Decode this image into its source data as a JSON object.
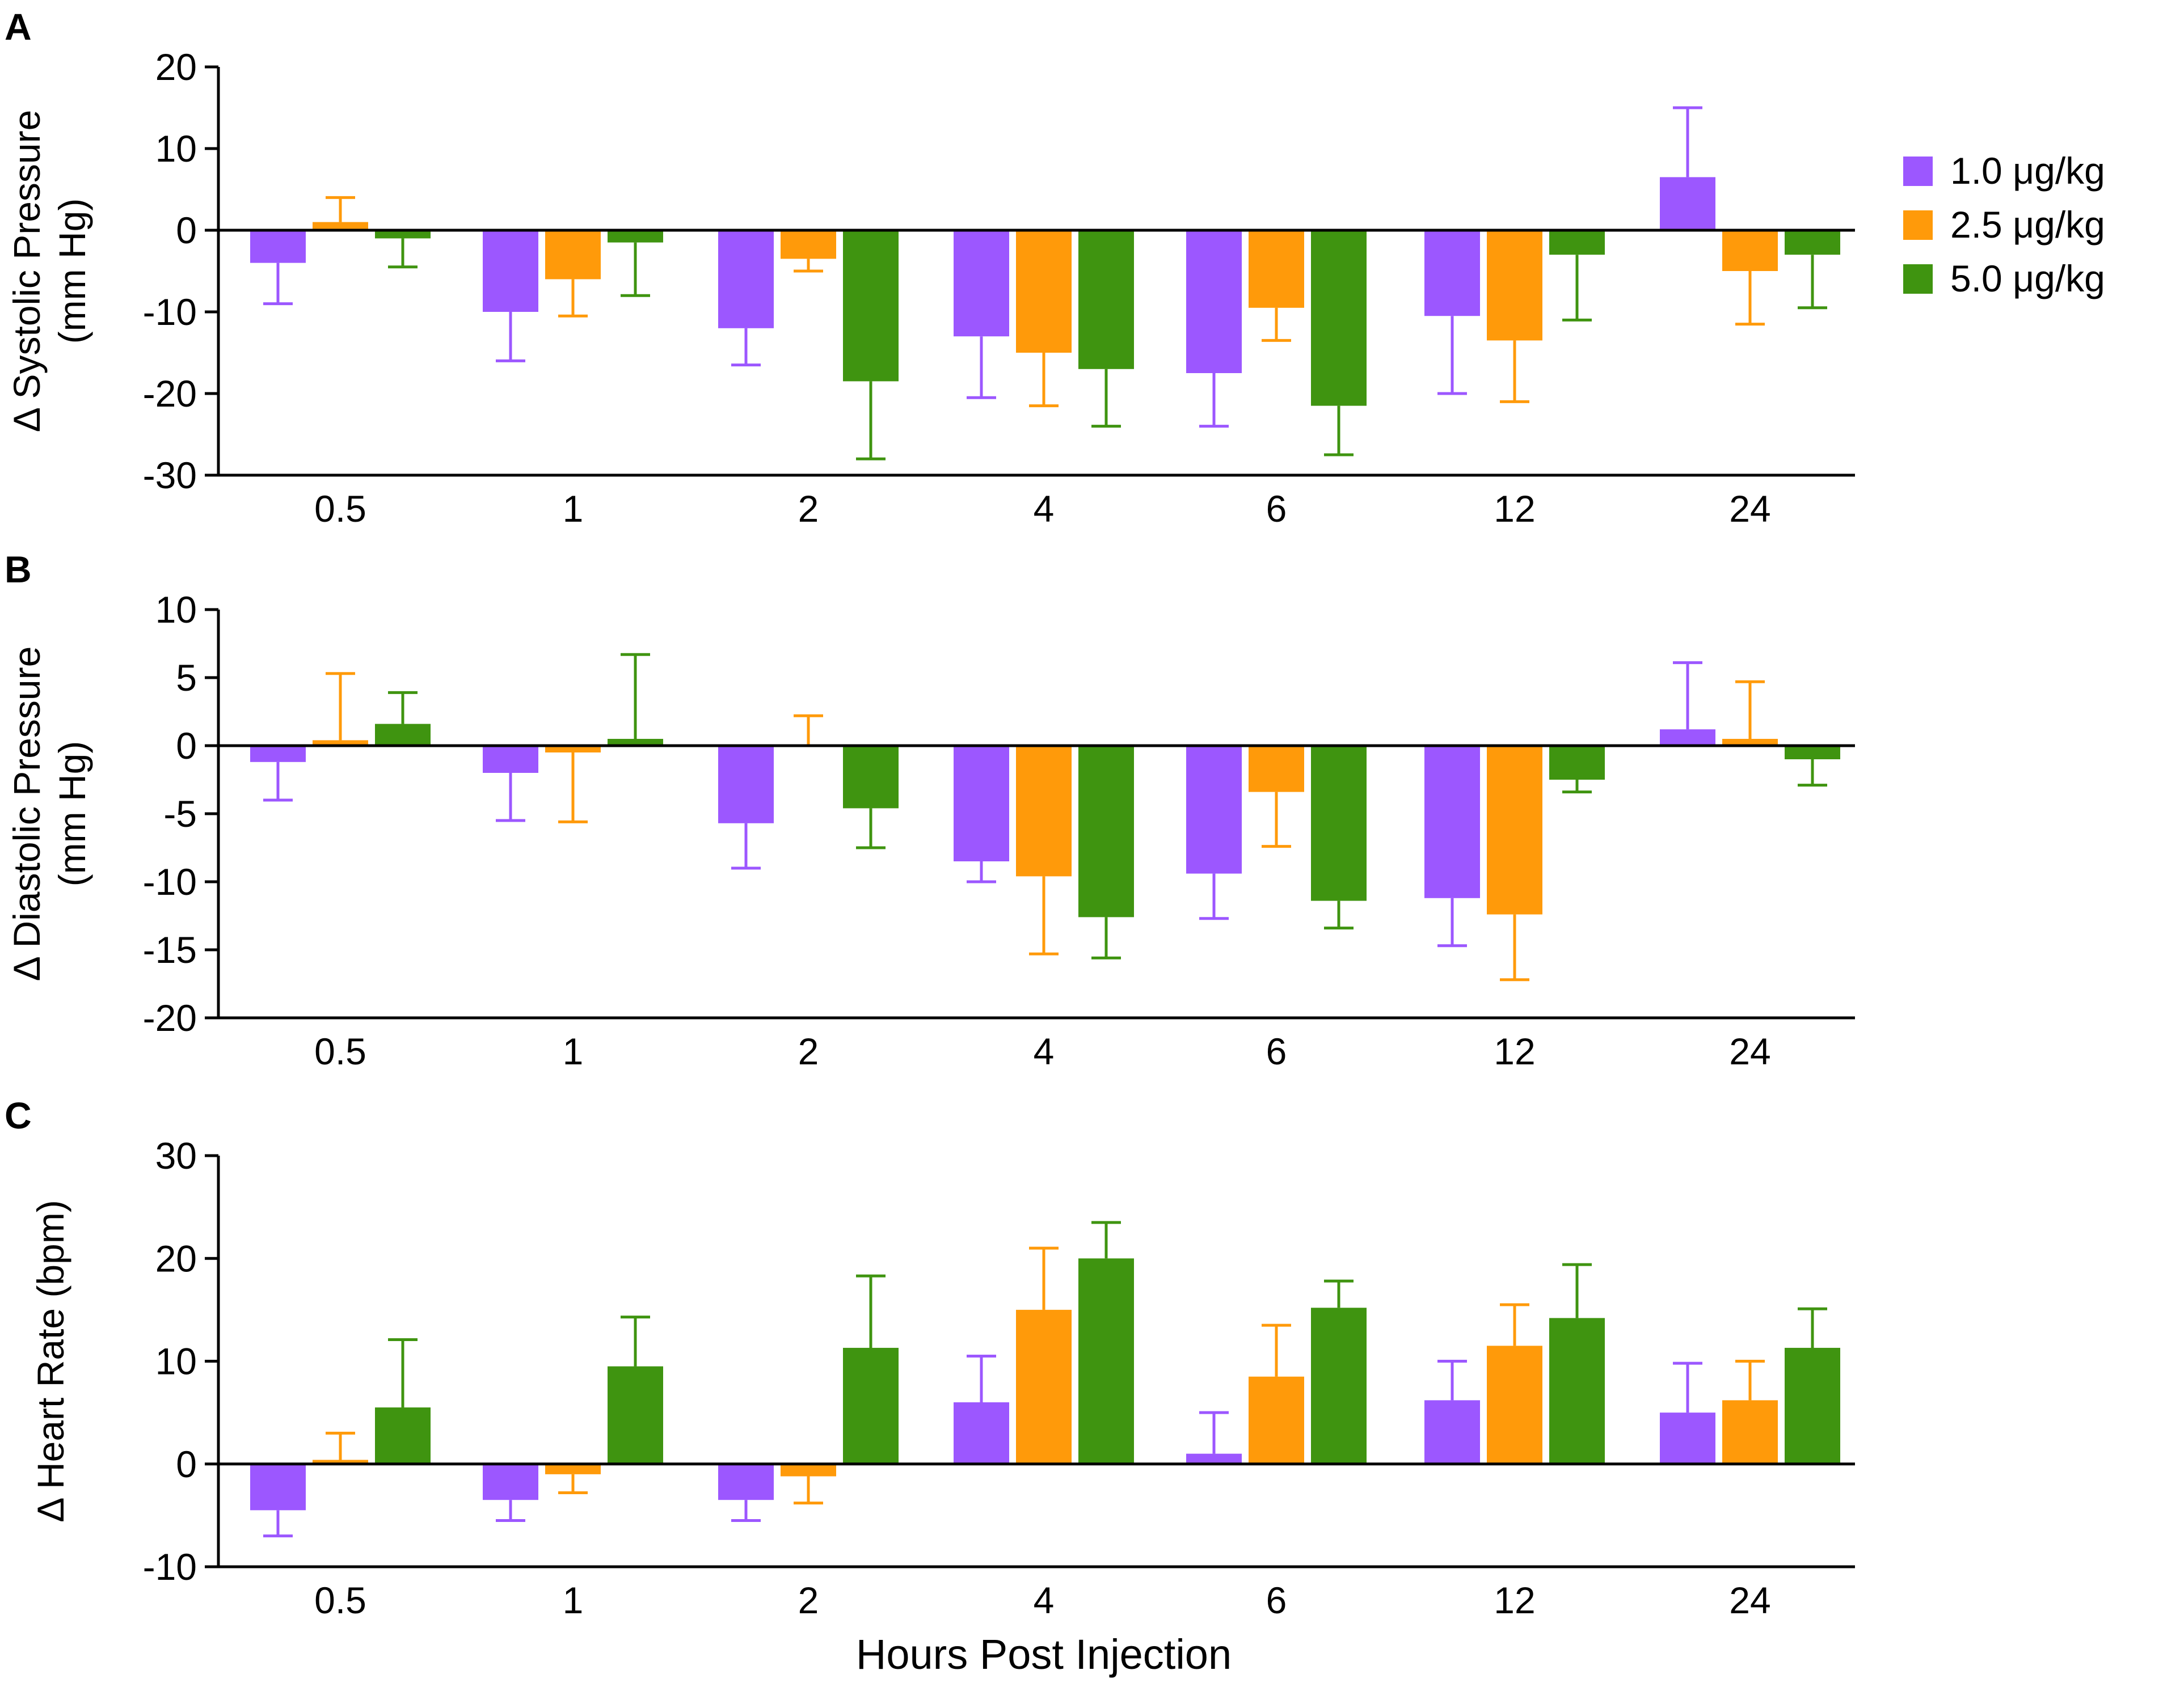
{
  "legend": {
    "items": [
      {
        "label": "1.0 μg/kg",
        "color": "#9c57ff"
      },
      {
        "label": "2.5 μg/kg",
        "color": "#ff9a0a"
      },
      {
        "label": "5.0 μg/kg",
        "color": "#3f9410"
      }
    ]
  },
  "xlabel": "Hours Post Injection",
  "chart_data": [
    {
      "panel": "A",
      "type": "bar",
      "ylabel": [
        "Δ Systolic Pressure",
        "(mm Hg)"
      ],
      "categories": [
        "0.5",
        "1",
        "2",
        "4",
        "6",
        "12",
        "24"
      ],
      "ylim": [
        -30,
        20
      ],
      "yticks": [
        20,
        10,
        0,
        -10,
        -20,
        -30
      ],
      "series": [
        {
          "name": "1.0 μg/kg",
          "values": [
            -4,
            -10,
            -12,
            -13,
            -17.5,
            -10.5,
            6.5
          ],
          "errors": [
            5,
            6,
            4.5,
            7.5,
            6.5,
            9.5,
            8.5
          ]
        },
        {
          "name": "2.5 μg/kg",
          "values": [
            1,
            -6,
            -3.5,
            -15,
            -9.5,
            -13.5,
            -5
          ],
          "errors": [
            3,
            4.5,
            1.5,
            6.5,
            4,
            7.5,
            6.5
          ]
        },
        {
          "name": "5.0 μg/kg",
          "values": [
            -1,
            -1.5,
            -18.5,
            -17,
            -21.5,
            -3,
            -3
          ],
          "errors": [
            3.5,
            6.5,
            9.5,
            7,
            6,
            8,
            6.5
          ]
        }
      ]
    },
    {
      "panel": "B",
      "type": "bar",
      "ylabel": [
        "Δ Diastolic Pressure",
        "(mm Hg)"
      ],
      "categories": [
        "0.5",
        "1",
        "2",
        "4",
        "6",
        "12",
        "24"
      ],
      "ylim": [
        -20,
        10
      ],
      "yticks": [
        10,
        5,
        0,
        -5,
        -10,
        -15,
        -20
      ],
      "series": [
        {
          "name": "1.0 μg/kg",
          "values": [
            -1.2,
            -2,
            -5.7,
            -8.5,
            -9.4,
            -11.2,
            1.2
          ],
          "errors": [
            2.8,
            3.5,
            3.3,
            1.5,
            3.3,
            3.5,
            4.9
          ]
        },
        {
          "name": "2.5 μg/kg",
          "values": [
            0.4,
            -0.5,
            0,
            -9.6,
            -3.4,
            -12.4,
            0.5
          ],
          "errors": [
            4.9,
            5.1,
            2.2,
            5.7,
            4,
            4.8,
            4.2
          ]
        },
        {
          "name": "5.0 μg/kg",
          "values": [
            1.6,
            0.5,
            -4.6,
            -12.6,
            -11.4,
            -2.5,
            -1
          ],
          "errors": [
            2.3,
            6.2,
            2.9,
            3,
            2,
            0.9,
            1.9
          ]
        }
      ]
    },
    {
      "panel": "C",
      "type": "bar",
      "ylabel": [
        "Δ Heart Rate (bpm)"
      ],
      "categories": [
        "0.5",
        "1",
        "2",
        "4",
        "6",
        "12",
        "24"
      ],
      "ylim": [
        -10,
        30
      ],
      "yticks": [
        30,
        20,
        10,
        0,
        -10
      ],
      "series": [
        {
          "name": "1.0 μg/kg",
          "values": [
            -4.5,
            -3.5,
            -3.5,
            6,
            1,
            6.2,
            5
          ],
          "errors": [
            2.5,
            2,
            2,
            4.5,
            4,
            3.8,
            4.8
          ]
        },
        {
          "name": "2.5 μg/kg",
          "values": [
            0.4,
            -1,
            -1.2,
            15,
            8.5,
            11.5,
            6.2
          ],
          "errors": [
            2.6,
            1.8,
            2.6,
            6,
            5,
            4,
            3.8
          ]
        },
        {
          "name": "5.0 μg/kg",
          "values": [
            5.5,
            9.5,
            11.3,
            20,
            15.2,
            14.2,
            11.3
          ],
          "errors": [
            6.6,
            4.8,
            7,
            3.5,
            2.6,
            5.2,
            3.8
          ]
        }
      ]
    }
  ]
}
